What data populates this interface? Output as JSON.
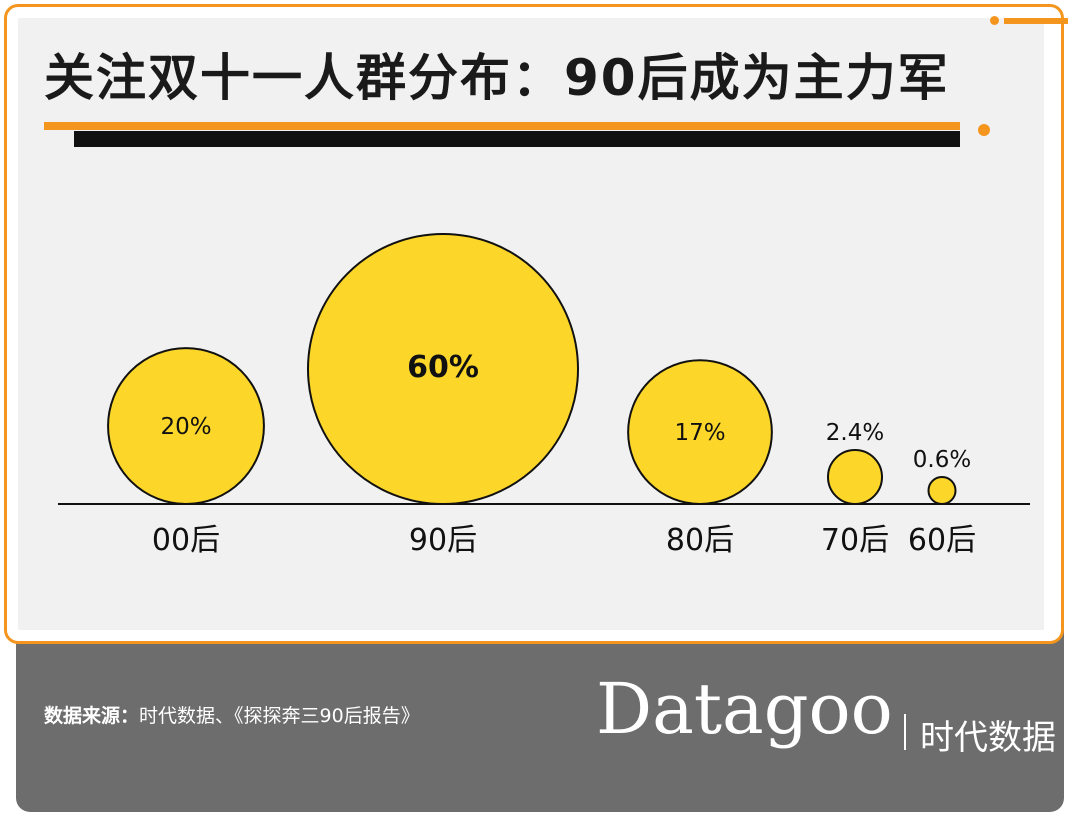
{
  "title": "关注双十一人群分布：90后成为主力军",
  "chart_data": {
    "type": "bubble",
    "categories": [
      "00后",
      "90后",
      "80后",
      "70后",
      "60后"
    ],
    "values": [
      20,
      60,
      17,
      2.4,
      0.6
    ],
    "labels": [
      "20%",
      "60%",
      "17%",
      "2.4%",
      "0.6%"
    ],
    "unit": "%"
  },
  "colors": {
    "bubble_fill": "#fcd629",
    "bubble_stroke": "#111111",
    "accent": "#f4951e",
    "footer": "#6d6d6d"
  },
  "source": {
    "label": "数据来源：",
    "text": "时代数据、《探探奔三90后报告》"
  },
  "brand": {
    "name": "Datagoo",
    "cn": "时代数据"
  }
}
